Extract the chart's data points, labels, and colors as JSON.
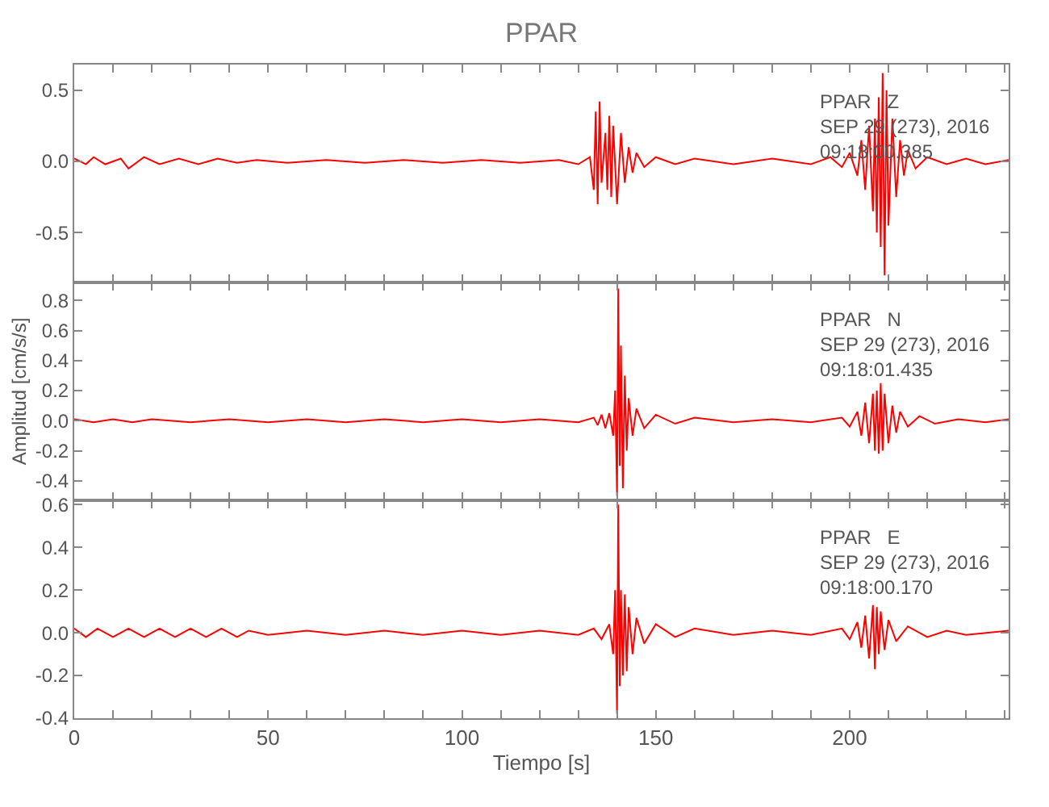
{
  "chart_data": [
    {
      "type": "line",
      "title": "PPAR",
      "annotations": [
        "PPAR   Z\nSEP 29 (273), 2016\n09:18:00.385"
      ],
      "tick_labels": "y",
      "xlim": [
        0,
        241
      ],
      "xticks": [
        0,
        {
          "value": 10,
          "label": null
        },
        {
          "value": 20,
          "label": null
        },
        {
          "value": 30,
          "label": null
        },
        {
          "value": 40,
          "label": null
        },
        50,
        {
          "value": 60,
          "label": null
        },
        {
          "value": 70,
          "label": null
        },
        {
          "value": 80,
          "label": null
        },
        {
          "value": 90,
          "label": null
        },
        100,
        {
          "value": 110,
          "label": null
        },
        {
          "value": 120,
          "label": null
        },
        {
          "value": 130,
          "label": null
        },
        {
          "value": 140,
          "label": null
        },
        150,
        {
          "value": 160,
          "label": null
        },
        {
          "value": 170,
          "label": null
        },
        {
          "value": 180,
          "label": null
        },
        {
          "value": 190,
          "label": null
        },
        200,
        {
          "value": 210,
          "label": null
        },
        {
          "value": 220,
          "label": null
        },
        {
          "value": 230,
          "label": null
        },
        {
          "value": 240,
          "label": null
        }
      ],
      "ylim": [
        -0.85,
        0.68
      ],
      "yticks": [
        {
          "value": -0.5,
          "label": "-0.5"
        },
        {
          "value": 0,
          "label": "0.0"
        },
        {
          "value": 0.5,
          "label": "0.5"
        }
      ],
      "series": [
        {
          "color": "#ff0000",
          "x": [
            0,
            3,
            5,
            8,
            12,
            14,
            18,
            22,
            27,
            32,
            37,
            42,
            47,
            55,
            65,
            75,
            85,
            95,
            105,
            115,
            125,
            130,
            133,
            134,
            134.5,
            135,
            135.5,
            136,
            137,
            137.5,
            138,
            138.5,
            139,
            140,
            141,
            142,
            143,
            144,
            145,
            147,
            150,
            155,
            160,
            170,
            180,
            190,
            195,
            198,
            200,
            202,
            203,
            204,
            205,
            206,
            206.5,
            207,
            207.5,
            208,
            208.5,
            209,
            209.5,
            210,
            211,
            212,
            213,
            214,
            215,
            217,
            220,
            225,
            230,
            235,
            241
          ],
          "values": [
            0.02,
            -0.02,
            0.03,
            -0.02,
            0.02,
            -0.05,
            0.03,
            -0.02,
            0.02,
            -0.02,
            0.02,
            -0.01,
            0.01,
            -0.01,
            0.01,
            -0.01,
            0.01,
            -0.01,
            0.01,
            -0.01,
            0.01,
            -0.02,
            0.03,
            -0.2,
            0.35,
            -0.3,
            0.42,
            -0.15,
            0.2,
            -0.2,
            0.32,
            -0.25,
            0.25,
            -0.3,
            0.2,
            -0.15,
            0.1,
            -0.08,
            0.06,
            -0.04,
            0.03,
            -0.02,
            0.02,
            -0.02,
            0.02,
            -0.02,
            0.03,
            -0.04,
            0.06,
            -0.1,
            0.15,
            -0.2,
            0.25,
            -0.35,
            0.3,
            -0.5,
            0.45,
            -0.6,
            0.62,
            -0.8,
            0.5,
            -0.45,
            0.3,
            -0.25,
            0.15,
            -0.1,
            0.08,
            -0.05,
            0.03,
            -0.02,
            0.02,
            -0.02,
            0.01
          ]
        }
      ]
    },
    {
      "type": "line",
      "ylabel": "Amplitud [cm/s/s]",
      "annotations": [
        "PPAR   N\nSEP 29 (273), 2016\n09:18:01.435"
      ],
      "tick_labels": "y",
      "xlim": [
        0,
        241
      ],
      "xticks": [
        0,
        {
          "value": 10,
          "label": null
        },
        {
          "value": 20,
          "label": null
        },
        {
          "value": 30,
          "label": null
        },
        {
          "value": 40,
          "label": null
        },
        50,
        {
          "value": 60,
          "label": null
        },
        {
          "value": 70,
          "label": null
        },
        {
          "value": 80,
          "label": null
        },
        {
          "value": 90,
          "label": null
        },
        100,
        {
          "value": 110,
          "label": null
        },
        {
          "value": 120,
          "label": null
        },
        {
          "value": 130,
          "label": null
        },
        {
          "value": 140,
          "label": null
        },
        150,
        {
          "value": 160,
          "label": null
        },
        {
          "value": 170,
          "label": null
        },
        {
          "value": 180,
          "label": null
        },
        {
          "value": 190,
          "label": null
        },
        200,
        {
          "value": 210,
          "label": null
        },
        {
          "value": 220,
          "label": null
        },
        {
          "value": 230,
          "label": null
        },
        {
          "value": 240,
          "label": null
        }
      ],
      "ylim": [
        -0.53,
        0.92
      ],
      "yticks": [
        {
          "value": -0.4,
          "label": "-0.4"
        },
        {
          "value": -0.2,
          "label": "-0.2"
        },
        {
          "value": 0,
          "label": "0.0"
        },
        {
          "value": 0.2,
          "label": "0.2"
        },
        {
          "value": 0.4,
          "label": "0.4"
        },
        {
          "value": 0.6,
          "label": "0.6"
        },
        {
          "value": 0.8,
          "label": "0.8"
        }
      ],
      "series": [
        {
          "color": "#ff0000",
          "x": [
            0,
            5,
            10,
            15,
            20,
            30,
            40,
            50,
            60,
            70,
            80,
            90,
            100,
            110,
            120,
            130,
            134,
            135,
            136,
            137,
            138,
            139,
            139.5,
            140,
            140.3,
            140.7,
            141,
            141.5,
            142,
            142.5,
            143,
            144,
            145,
            147,
            150,
            155,
            160,
            170,
            180,
            190,
            198,
            200,
            202,
            203,
            204,
            205,
            206,
            206.5,
            207,
            207.5,
            208,
            208.5,
            209,
            210,
            211,
            212,
            213,
            215,
            218,
            222,
            228,
            235,
            241
          ],
          "values": [
            0.01,
            -0.01,
            0.01,
            -0.01,
            0.01,
            -0.01,
            0.01,
            -0.01,
            0.01,
            -0.01,
            0.01,
            -0.01,
            0.01,
            -0.01,
            0.01,
            -0.01,
            0.02,
            -0.03,
            0.04,
            -0.05,
            0.05,
            -0.1,
            0.2,
            -0.5,
            0.88,
            -0.3,
            0.5,
            -0.45,
            0.3,
            -0.2,
            0.15,
            -0.1,
            0.08,
            -0.05,
            0.04,
            -0.02,
            0.02,
            -0.01,
            0.01,
            -0.01,
            0.02,
            -0.04,
            0.06,
            -0.1,
            0.12,
            -0.15,
            0.18,
            -0.2,
            0.2,
            -0.22,
            0.25,
            -0.2,
            0.18,
            -0.15,
            0.1,
            -0.08,
            0.06,
            -0.04,
            0.03,
            -0.02,
            0.01,
            -0.01,
            0.01
          ]
        }
      ]
    },
    {
      "type": "line",
      "xlabel": "Tiempo [s]",
      "annotations": [
        "PPAR   E\nSEP 29 (273), 2016\n09:18:00.170"
      ],
      "xlim": [
        0,
        241
      ],
      "xticks": [
        0,
        {
          "value": 10,
          "label": null
        },
        {
          "value": 20,
          "label": null
        },
        {
          "value": 30,
          "label": null
        },
        {
          "value": 40,
          "label": null
        },
        50,
        {
          "value": 60,
          "label": null
        },
        {
          "value": 70,
          "label": null
        },
        {
          "value": 80,
          "label": null
        },
        {
          "value": 90,
          "label": null
        },
        100,
        {
          "value": 110,
          "label": null
        },
        {
          "value": 120,
          "label": null
        },
        {
          "value": 130,
          "label": null
        },
        {
          "value": 140,
          "label": null
        },
        150,
        {
          "value": 160,
          "label": null
        },
        {
          "value": 170,
          "label": null
        },
        {
          "value": 180,
          "label": null
        },
        {
          "value": 190,
          "label": null
        },
        200,
        {
          "value": 210,
          "label": null
        },
        {
          "value": 220,
          "label": null
        },
        {
          "value": 230,
          "label": null
        },
        {
          "value": 240,
          "label": null
        }
      ],
      "ylim": [
        -0.4,
        0.62
      ],
      "yticks": [
        {
          "value": -0.4,
          "label": "-0.4"
        },
        {
          "value": -0.2,
          "label": "-0.2"
        },
        {
          "value": 0,
          "label": "0.0"
        },
        {
          "value": 0.2,
          "label": "0.2"
        },
        {
          "value": 0.4,
          "label": "0.4"
        },
        {
          "value": 0.6,
          "label": "0.6"
        }
      ],
      "series": [
        {
          "color": "#ff0000",
          "x": [
            0,
            3,
            6,
            10,
            14,
            18,
            22,
            26,
            30,
            34,
            38,
            42,
            45,
            50,
            60,
            70,
            80,
            90,
            100,
            110,
            120,
            130,
            134,
            136,
            138,
            139,
            139.5,
            140,
            140.3,
            140.7,
            141,
            141.5,
            142,
            142.5,
            143,
            144,
            145,
            147,
            150,
            155,
            160,
            170,
            180,
            190,
            198,
            200,
            202,
            203,
            204,
            205,
            206,
            206.5,
            207,
            207.5,
            208,
            209,
            210,
            212,
            215,
            220,
            225,
            230,
            241
          ],
          "values": [
            0.02,
            -0.02,
            0.02,
            -0.02,
            0.02,
            -0.02,
            0.02,
            -0.02,
            0.02,
            -0.02,
            0.02,
            -0.02,
            0.01,
            -0.01,
            0.01,
            -0.01,
            0.01,
            -0.01,
            0.01,
            -0.01,
            0.01,
            -0.01,
            0.02,
            -0.03,
            0.04,
            -0.1,
            0.2,
            -0.38,
            0.6,
            -0.25,
            0.2,
            -0.2,
            0.18,
            -0.18,
            0.12,
            -0.1,
            0.07,
            -0.05,
            0.04,
            -0.02,
            0.02,
            -0.01,
            0.01,
            -0.01,
            0.02,
            -0.03,
            0.05,
            -0.07,
            0.08,
            -0.12,
            0.13,
            -0.17,
            0.12,
            -0.1,
            0.1,
            -0.08,
            0.06,
            -0.04,
            0.03,
            -0.02,
            0.01,
            -0.01,
            0.01
          ]
        }
      ]
    }
  ]
}
